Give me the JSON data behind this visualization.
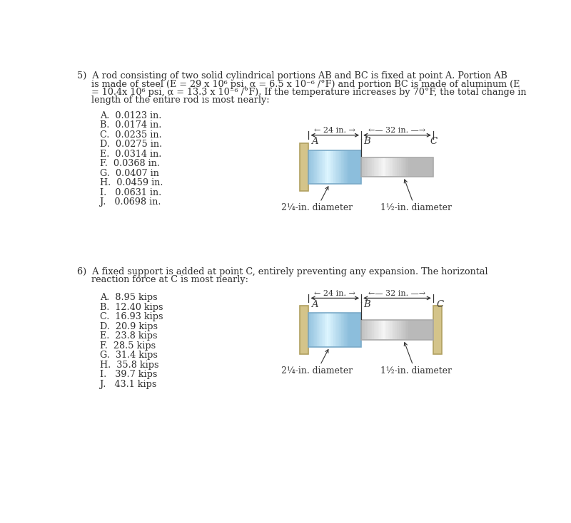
{
  "background_color": "#ffffff",
  "body_color": "#2d2d2d",
  "blue_text_color": "#2c5090",
  "font_size_body": 9.2,
  "font_size_choices": 9.2,
  "q5_lines": [
    "5)  A rod consisting of two solid cylindrical portions AB and BC is fixed at point A. Portion AB",
    "     is made of steel (E = 29 x 10⁶ psi, α = 6.5 x 10⁻⁶ /°F) and portion BC is made of aluminum (E",
    "     = 10.4x 10⁶ psi, α = 13.3 x 10⁻⁶ /°F). If the temperature increases by 70°F, the total change in",
    "     length of the entire rod is most nearly:"
  ],
  "q5_choices": [
    "A.  0.0123 in.",
    "B.  0.0174 in.",
    "C.  0.0235 in.",
    "D.  0.0275 in.",
    "E.  0.0314 in.",
    "F.  0.0368 in.",
    "G.  0.0407 in",
    "H.  0.0459 in.",
    "I.   0.0631 in.",
    "J.   0.0698 in."
  ],
  "q6_lines": [
    "6)  A fixed support is added at point C, entirely preventing any expansion. The horizontal",
    "     reaction force at C is most nearly:"
  ],
  "q6_choices": [
    "A.  8.95 kips",
    "B.  12.40 kips",
    "C.  16.93 kips",
    "D.  20.9 kips",
    "E.  23.8 kips",
    "F.  28.5 kips",
    "G.  31.4 kips",
    "H.  35.8 kips",
    "I.   39.7 kips",
    "J.   43.1 kips"
  ],
  "wall_face_color": "#d4c48a",
  "wall_edge_color": "#b0a060",
  "ab_color_center": "#a8d4e8",
  "ab_color_edge": "#6090b0",
  "bc_color_center": "#e8e8e8",
  "bc_color_edge": "#909090",
  "dim_line_color": "#333333",
  "label_color": "#333333",
  "diam_left_label": "2¼-in. diameter",
  "diam_right_label": "1½-in. diameter",
  "dim_24_label": "← 24 in. →",
  "dim_32_label": "←— 32 in. —→"
}
